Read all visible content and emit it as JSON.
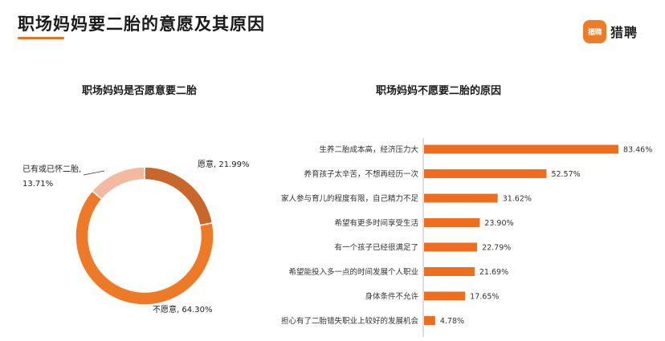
{
  "header": {
    "title": "职场妈妈要二胎的意愿及其原因",
    "logo_badge": "猎聘",
    "logo_text": "猎聘"
  },
  "colors": {
    "accent": "#ee6d1e",
    "donut_willing": "#c9672b",
    "donut_unwilling": "#ee7a28",
    "donut_has": "#f3baa2",
    "bar": "#ee6d1e"
  },
  "chart_data": [
    {
      "type": "pie",
      "style": "donut",
      "title": "职场妈妈是否愿意要二胎",
      "slices": [
        {
          "label": "愿意",
          "value": 21.99,
          "display": "愿意, 21.99%"
        },
        {
          "label": "不愿意",
          "value": 64.3,
          "display": "不愿意, 64.30%"
        },
        {
          "label": "已有或已怀二胎",
          "value": 13.71,
          "display_line1": "已有或已怀二胎,",
          "display_line2": "13.71%"
        }
      ]
    },
    {
      "type": "bar",
      "orientation": "horizontal",
      "title": "职场妈妈不愿要二胎的原因",
      "categories": [
        "生养二胎成本高，经济压力大",
        "养育孩子太辛苦，不想再经历一次",
        "家人参与育儿的程度有限，自己精力不足",
        "希望有更多时间享受生活",
        "有一个孩子已经很满足了",
        "希望能投入多一点的时间发展个人职业",
        "身体条件不允许",
        "担心有了二胎错失职业上较好的发展机会"
      ],
      "values": [
        83.46,
        52.57,
        31.62,
        23.9,
        22.79,
        21.69,
        17.65,
        4.78
      ],
      "value_labels": [
        "83.46%",
        "52.57%",
        "31.62%",
        "23.90%",
        "22.79%",
        "21.69%",
        "17.65%",
        "4.78%"
      ],
      "xlim": [
        0,
        100
      ]
    }
  ]
}
